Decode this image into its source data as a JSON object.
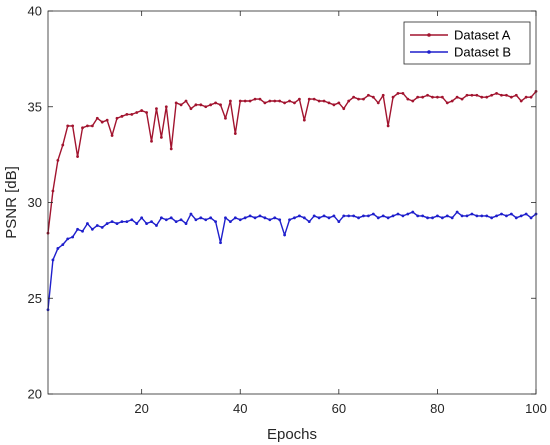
{
  "chart_data": {
    "type": "line",
    "title": "",
    "xlabel": "Epochs",
    "ylabel": "PSNR [dB]",
    "xlim": [
      1,
      100
    ],
    "ylim": [
      20,
      40
    ],
    "xticks": [
      20,
      40,
      60,
      80,
      100
    ],
    "yticks": [
      20,
      25,
      30,
      35,
      40
    ],
    "grid": false,
    "legend_position": "top-right",
    "x": [
      1,
      2,
      3,
      4,
      5,
      6,
      7,
      8,
      9,
      10,
      11,
      12,
      13,
      14,
      15,
      16,
      17,
      18,
      19,
      20,
      21,
      22,
      23,
      24,
      25,
      26,
      27,
      28,
      29,
      30,
      31,
      32,
      33,
      34,
      35,
      36,
      37,
      38,
      39,
      40,
      41,
      42,
      43,
      44,
      45,
      46,
      47,
      48,
      49,
      50,
      51,
      52,
      53,
      54,
      55,
      56,
      57,
      58,
      59,
      60,
      61,
      62,
      63,
      64,
      65,
      66,
      67,
      68,
      69,
      70,
      71,
      72,
      73,
      74,
      75,
      76,
      77,
      78,
      79,
      80,
      81,
      82,
      83,
      84,
      85,
      86,
      87,
      88,
      89,
      90,
      91,
      92,
      93,
      94,
      95,
      96,
      97,
      98,
      99,
      100
    ],
    "series": [
      {
        "name": "Dataset A",
        "color": "#a2142f",
        "values": [
          28.4,
          30.6,
          32.2,
          33.0,
          34.0,
          34.0,
          32.4,
          33.9,
          34.0,
          34.0,
          34.4,
          34.2,
          34.3,
          33.5,
          34.4,
          34.5,
          34.6,
          34.6,
          34.7,
          34.8,
          34.7,
          33.2,
          34.9,
          33.4,
          35.0,
          32.8,
          35.2,
          35.1,
          35.3,
          34.9,
          35.1,
          35.1,
          35.0,
          35.1,
          35.2,
          35.1,
          34.4,
          35.3,
          33.6,
          35.3,
          35.3,
          35.3,
          35.4,
          35.4,
          35.2,
          35.3,
          35.3,
          35.3,
          35.2,
          35.3,
          35.2,
          35.4,
          34.3,
          35.4,
          35.4,
          35.3,
          35.3,
          35.2,
          35.1,
          35.2,
          34.9,
          35.3,
          35.5,
          35.4,
          35.4,
          35.6,
          35.5,
          35.2,
          35.6,
          34.0,
          35.5,
          35.7,
          35.7,
          35.4,
          35.3,
          35.5,
          35.5,
          35.6,
          35.5,
          35.5,
          35.5,
          35.2,
          35.3,
          35.5,
          35.4,
          35.6,
          35.6,
          35.6,
          35.5,
          35.5,
          35.6,
          35.7,
          35.6,
          35.6,
          35.5,
          35.6,
          35.3,
          35.5,
          35.5,
          35.8
        ]
      },
      {
        "name": "Dataset B",
        "color": "#1f1fcc",
        "values": [
          24.4,
          27.0,
          27.6,
          27.8,
          28.1,
          28.2,
          28.6,
          28.5,
          28.9,
          28.6,
          28.8,
          28.7,
          28.9,
          29.0,
          28.9,
          29.0,
          29.0,
          29.1,
          28.9,
          29.2,
          28.9,
          29.0,
          28.8,
          29.2,
          29.1,
          29.2,
          29.0,
          29.1,
          28.9,
          29.4,
          29.1,
          29.2,
          29.1,
          29.2,
          29.0,
          27.9,
          29.2,
          29.0,
          29.2,
          29.1,
          29.2,
          29.3,
          29.2,
          29.3,
          29.2,
          29.1,
          29.2,
          29.1,
          28.3,
          29.1,
          29.2,
          29.3,
          29.2,
          29.0,
          29.3,
          29.2,
          29.3,
          29.2,
          29.3,
          29.0,
          29.3,
          29.3,
          29.3,
          29.2,
          29.3,
          29.3,
          29.4,
          29.2,
          29.3,
          29.2,
          29.3,
          29.4,
          29.3,
          29.4,
          29.5,
          29.3,
          29.3,
          29.2,
          29.2,
          29.3,
          29.2,
          29.3,
          29.2,
          29.5,
          29.3,
          29.3,
          29.4,
          29.3,
          29.3,
          29.3,
          29.2,
          29.3,
          29.4,
          29.3,
          29.4,
          29.2,
          29.3,
          29.4,
          29.2,
          29.4
        ]
      }
    ]
  }
}
